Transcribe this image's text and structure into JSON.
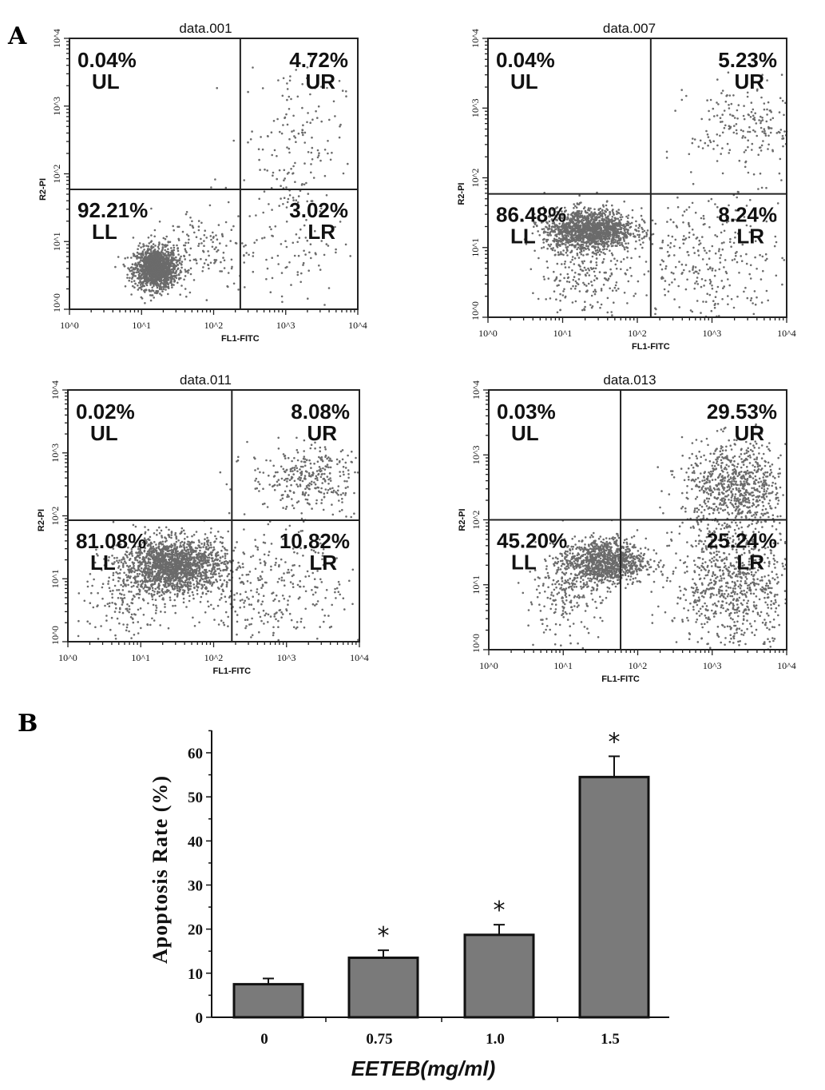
{
  "panel_labels": {
    "a": "A",
    "b": "B"
  },
  "chart_data": [
    {
      "type": "scatter",
      "title": "data.001",
      "xlabel": "FL1-FITC",
      "ylabel": "R2-PI",
      "xscale": "log",
      "yscale": "log",
      "xlim": [
        1,
        10000
      ],
      "ylim": [
        1,
        10000
      ],
      "tick_labels": [
        "10^0",
        "10^1",
        "10^2",
        "10^3",
        "10^4"
      ],
      "gate_log10": {
        "x": 2.37,
        "y": 1.77
      },
      "quadrants": {
        "UL": {
          "label": "UL",
          "value": "0.04%"
        },
        "UR": {
          "label": "UR",
          "value": "4.72%"
        },
        "LL": {
          "label": "LL",
          "value": "92.21%"
        },
        "LR": {
          "label": "LR",
          "value": "3.02%"
        }
      },
      "clusters_log10": [
        {
          "x": 1.2,
          "y": 0.6,
          "sx": 0.15,
          "sy": 0.15,
          "n": 1400
        },
        {
          "x": 3.1,
          "y": 2.5,
          "sx": 0.35,
          "sy": 0.6,
          "n": 150
        },
        {
          "x": 3.0,
          "y": 1.0,
          "sx": 0.4,
          "sy": 0.5,
          "n": 110
        },
        {
          "x": 1.8,
          "y": 0.9,
          "sx": 0.35,
          "sy": 0.3,
          "n": 150
        }
      ]
    },
    {
      "type": "scatter",
      "title": "data.007",
      "xlabel": "FL1-FITC",
      "ylabel": "R2-PI",
      "xscale": "log",
      "yscale": "log",
      "xlim": [
        1,
        10000
      ],
      "ylim": [
        1,
        10000
      ],
      "tick_labels": [
        "10^0",
        "10^1",
        "10^2",
        "10^3",
        "10^4"
      ],
      "gate_log10": {
        "x": 2.18,
        "y": 1.77
      },
      "quadrants": {
        "UL": {
          "label": "UL",
          "value": "0.04%"
        },
        "UR": {
          "label": "UR",
          "value": "5.23%"
        },
        "LL": {
          "label": "LL",
          "value": "86.48%"
        },
        "LR": {
          "label": "LR",
          "value": "8.24%"
        }
      },
      "clusters_log10": [
        {
          "x": 1.35,
          "y": 1.25,
          "sx": 0.3,
          "sy": 0.15,
          "n": 1500
        },
        {
          "x": 3.5,
          "y": 2.7,
          "sx": 0.4,
          "sy": 0.35,
          "n": 220
        },
        {
          "x": 3.0,
          "y": 0.8,
          "sx": 0.5,
          "sy": 0.45,
          "n": 300
        },
        {
          "x": 1.3,
          "y": 0.6,
          "sx": 0.3,
          "sy": 0.3,
          "n": 200
        }
      ]
    },
    {
      "type": "scatter",
      "title": "data.011",
      "xlabel": "FL1-FITC",
      "ylabel": "R2-PI",
      "xscale": "log",
      "yscale": "log",
      "xlim": [
        1,
        10000
      ],
      "ylim": [
        1,
        10000
      ],
      "tick_labels": [
        "10^0",
        "10^1",
        "10^2",
        "10^3",
        "10^4"
      ],
      "gate_log10": {
        "x": 2.25,
        "y": 1.93
      },
      "quadrants": {
        "UL": {
          "label": "UL",
          "value": "0.02%"
        },
        "UR": {
          "label": "UR",
          "value": "8.08%"
        },
        "LL": {
          "label": "LL",
          "value": "81.08%"
        },
        "LR": {
          "label": "LR",
          "value": "10.82%"
        }
      },
      "clusters_log10": [
        {
          "x": 1.45,
          "y": 1.2,
          "sx": 0.35,
          "sy": 0.22,
          "n": 1800
        },
        {
          "x": 3.3,
          "y": 2.6,
          "sx": 0.4,
          "sy": 0.25,
          "n": 320
        },
        {
          "x": 2.8,
          "y": 0.9,
          "sx": 0.5,
          "sy": 0.5,
          "n": 320
        },
        {
          "x": 0.8,
          "y": 0.6,
          "sx": 0.3,
          "sy": 0.3,
          "n": 150
        }
      ]
    },
    {
      "type": "scatter",
      "title": "data.013",
      "xlabel": "FL1-FITC",
      "ylabel": "R2-PI",
      "xscale": "log",
      "yscale": "log",
      "xlim": [
        1,
        10000
      ],
      "ylim": [
        1,
        10000
      ],
      "tick_labels": [
        "10^0",
        "10^1",
        "10^2",
        "10^3",
        "10^4"
      ],
      "gate_log10": {
        "x": 1.77,
        "y": 2.0
      },
      "quadrants": {
        "UL": {
          "label": "UL",
          "value": "0.03%"
        },
        "UR": {
          "label": "UR",
          "value": "29.53%"
        },
        "LL": {
          "label": "LL",
          "value": "45.20%"
        },
        "LR": {
          "label": "LR",
          "value": "25.24%"
        }
      },
      "clusters_log10": [
        {
          "x": 1.55,
          "y": 1.35,
          "sx": 0.28,
          "sy": 0.18,
          "n": 1100
        },
        {
          "x": 3.3,
          "y": 2.5,
          "sx": 0.35,
          "sy": 0.35,
          "n": 800
        },
        {
          "x": 3.3,
          "y": 1.0,
          "sx": 0.4,
          "sy": 0.5,
          "n": 800
        },
        {
          "x": 1.0,
          "y": 0.8,
          "sx": 0.25,
          "sy": 0.3,
          "n": 200
        }
      ]
    },
    {
      "type": "bar",
      "categories": [
        "0",
        "0.75",
        "1.0",
        "1.5"
      ],
      "values": [
        7.5,
        13.5,
        18.7,
        54.5
      ],
      "error_upper": [
        1.3,
        1.7,
        2.3,
        4.7
      ],
      "significance": [
        "",
        "*",
        "*",
        "*"
      ],
      "xlabel": "EETEB(mg/ml)",
      "ylabel": "Apoptosis Rate (%)",
      "ylim": [
        0,
        65
      ],
      "yticks": [
        "0",
        "10",
        "20",
        "30",
        "40",
        "50",
        "60"
      ],
      "bar_color": "#7a7a7a"
    }
  ]
}
